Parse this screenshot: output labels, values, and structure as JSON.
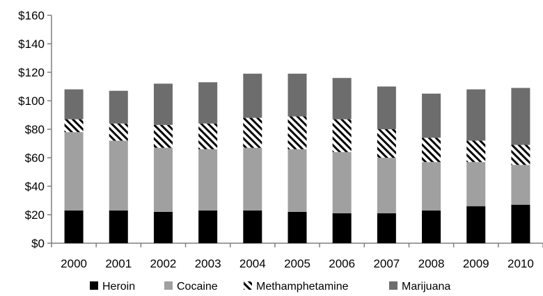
{
  "chart_data": {
    "type": "bar",
    "stacked": true,
    "categories": [
      "2000",
      "2001",
      "2002",
      "2003",
      "2004",
      "2005",
      "2006",
      "2007",
      "2008",
      "2009",
      "2010"
    ],
    "series": [
      {
        "name": "Heroin",
        "color": "#000000",
        "pattern": "solid",
        "values": [
          23,
          23,
          22,
          23,
          23,
          22,
          21,
          21,
          23,
          26,
          27
        ]
      },
      {
        "name": "Cocaine",
        "color": "#a0a0a0",
        "pattern": "solid",
        "values": [
          55,
          49,
          45,
          43,
          44,
          44,
          43,
          39,
          34,
          31,
          28
        ]
      },
      {
        "name": "Methamphetamine",
        "color": "#000000",
        "pattern": "diagonal-hatch",
        "values": [
          9,
          12,
          16,
          18,
          21,
          23,
          23,
          20,
          17,
          15,
          14
        ]
      },
      {
        "name": "Marijuana",
        "color": "#6d6d6d",
        "pattern": "solid",
        "values": [
          21,
          23,
          29,
          29,
          31,
          30,
          29,
          30,
          31,
          36,
          40
        ]
      }
    ],
    "ylim": [
      0,
      160
    ],
    "y_ticks": [
      "$0",
      "$20",
      "$40",
      "$60",
      "$80",
      "$100",
      "$120",
      "$140",
      "$160"
    ],
    "y_tick_values": [
      0,
      20,
      40,
      60,
      80,
      100,
      120,
      140,
      160
    ],
    "legend_position": "bottom",
    "grid": false
  }
}
